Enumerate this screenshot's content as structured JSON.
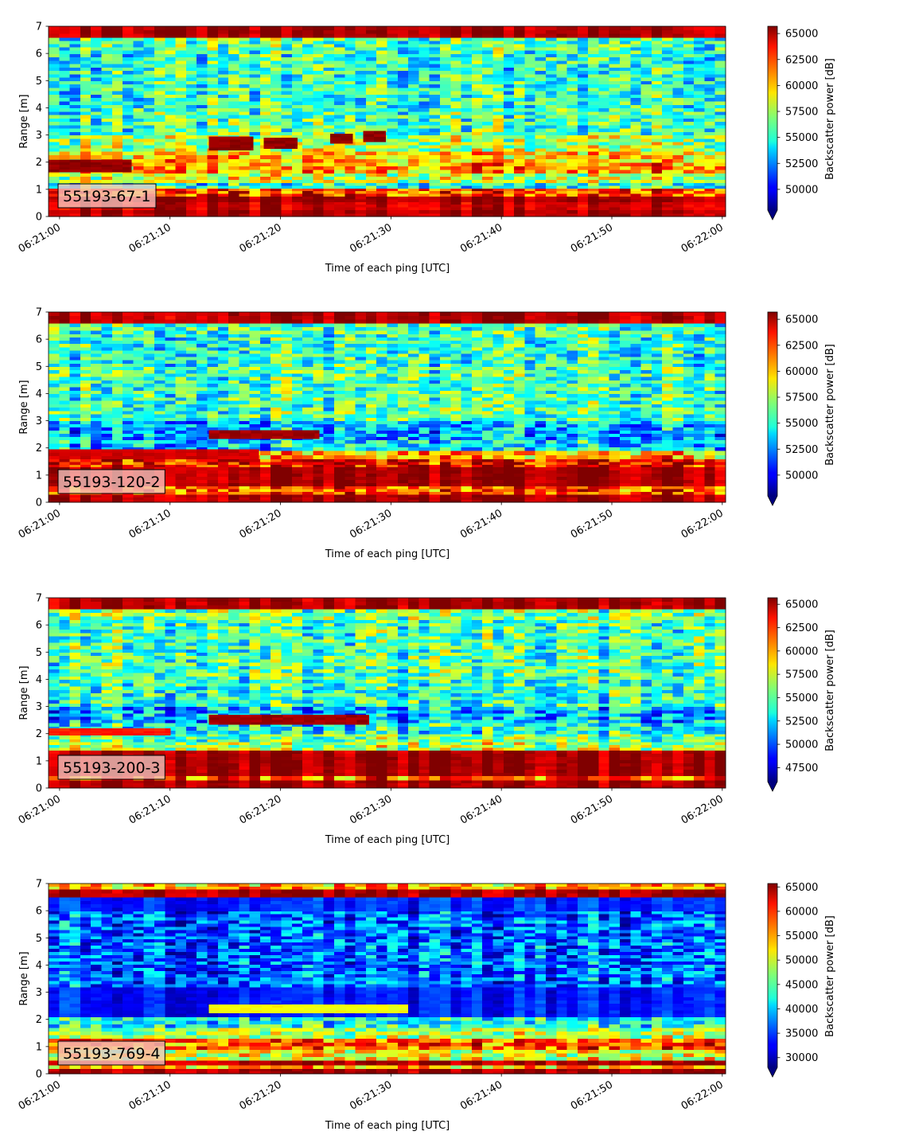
{
  "chart_data": [
    {
      "type": "heatmap",
      "panel_label": "55193-67-1",
      "xlabel": "Time of each ping [UTC]",
      "ylabel": "Range [m]",
      "x_ticks": [
        "06:21:00",
        "06:21:10",
        "06:21:20",
        "06:21:30",
        "06:21:40",
        "06:21:50",
        "06:22:00"
      ],
      "x_range_seconds": [
        -1,
        60.3
      ],
      "ylim": [
        0,
        7
      ],
      "y_ticks": [
        0,
        1,
        2,
        3,
        4,
        5,
        6,
        7
      ],
      "colormap": "jet",
      "colorbar_label": "Backscatter power [dB]",
      "colorbar_range": [
        48000,
        65700
      ],
      "colorbar_ticks": [
        50000,
        52500,
        55000,
        57500,
        60000,
        62500,
        65000
      ],
      "colorbar_extend": "min",
      "layers": [
        {
          "y0": 0.0,
          "y1": 0.25,
          "level": 0.96
        },
        {
          "y0": 0.25,
          "y1": 0.55,
          "level": 0.92
        },
        {
          "y0": 0.55,
          "y1": 0.75,
          "level": 0.97
        },
        {
          "y0": 0.75,
          "y1": 1.05,
          "level": 0.82
        },
        {
          "y0": 1.05,
          "y1": 1.25,
          "level": 0.4
        },
        {
          "y0": 1.25,
          "y1": 1.6,
          "level": 0.58
        },
        {
          "y0": 1.6,
          "y1": 2.0,
          "level": 0.72
        },
        {
          "y0": 2.0,
          "y1": 2.4,
          "level": 0.68
        },
        {
          "y0": 2.4,
          "y1": 3.0,
          "level": 0.55
        },
        {
          "y0": 3.0,
          "y1": 4.0,
          "level": 0.45
        },
        {
          "y0": 4.0,
          "y1": 5.0,
          "level": 0.42
        },
        {
          "y0": 5.0,
          "y1": 6.0,
          "level": 0.42
        },
        {
          "y0": 6.0,
          "y1": 6.6,
          "level": 0.45
        },
        {
          "y0": 6.6,
          "y1": 7.0,
          "level": 0.96
        }
      ],
      "features": [
        {
          "t0": -1,
          "t1": 6.5,
          "y0": 1.65,
          "y1": 2.1,
          "level": 0.98
        },
        {
          "t0": 13.5,
          "t1": 17.5,
          "y0": 2.45,
          "y1": 2.95,
          "level": 0.98
        },
        {
          "t0": 18.5,
          "t1": 21.5,
          "y0": 2.5,
          "y1": 2.9,
          "level": 0.98
        },
        {
          "t0": 24.5,
          "t1": 26.5,
          "y0": 2.7,
          "y1": 3.05,
          "level": 0.98
        },
        {
          "t0": 27.5,
          "t1": 29.5,
          "y0": 2.75,
          "y1": 3.15,
          "level": 0.98
        }
      ]
    },
    {
      "type": "heatmap",
      "panel_label": "55193-120-2",
      "xlabel": "Time of each ping [UTC]",
      "ylabel": "Range [m]",
      "x_ticks": [
        "06:21:00",
        "06:21:10",
        "06:21:20",
        "06:21:30",
        "06:21:40",
        "06:21:50",
        "06:22:00"
      ],
      "x_range_seconds": [
        -1,
        60.3
      ],
      "ylim": [
        0,
        7
      ],
      "y_ticks": [
        0,
        1,
        2,
        3,
        4,
        5,
        6,
        7
      ],
      "colormap": "jet",
      "colorbar_label": "Backscatter power [dB]",
      "colorbar_range": [
        48000,
        65700
      ],
      "colorbar_ticks": [
        50000,
        52500,
        55000,
        57500,
        60000,
        62500,
        65000
      ],
      "colorbar_extend": "min",
      "layers": [
        {
          "y0": 0.0,
          "y1": 0.3,
          "level": 0.96
        },
        {
          "y0": 0.3,
          "y1": 0.6,
          "level": 0.8
        },
        {
          "y0": 0.6,
          "y1": 1.3,
          "level": 0.96
        },
        {
          "y0": 1.3,
          "y1": 1.6,
          "level": 0.88
        },
        {
          "y0": 1.6,
          "y1": 1.9,
          "level": 0.7
        },
        {
          "y0": 1.9,
          "y1": 2.3,
          "level": 0.35
        },
        {
          "y0": 2.3,
          "y1": 3.0,
          "level": 0.3
        },
        {
          "y0": 3.0,
          "y1": 4.0,
          "level": 0.45
        },
        {
          "y0": 4.0,
          "y1": 5.0,
          "level": 0.45
        },
        {
          "y0": 5.0,
          "y1": 6.2,
          "level": 0.42
        },
        {
          "y0": 6.2,
          "y1": 6.6,
          "level": 0.45
        },
        {
          "y0": 6.6,
          "y1": 7.0,
          "level": 0.95
        }
      ],
      "features": [
        {
          "t0": -1,
          "t1": 18,
          "y0": 1.6,
          "y1": 1.95,
          "level": 0.92
        },
        {
          "t0": 13.5,
          "t1": 23.5,
          "y0": 2.35,
          "y1": 2.65,
          "level": 0.97
        }
      ]
    },
    {
      "type": "heatmap",
      "panel_label": "55193-200-3",
      "xlabel": "Time of each ping [UTC]",
      "ylabel": "Range [m]",
      "x_ticks": [
        "06:21:00",
        "06:21:10",
        "06:21:20",
        "06:21:30",
        "06:21:40",
        "06:21:50",
        "06:22:00"
      ],
      "x_range_seconds": [
        -1,
        60.3
      ],
      "ylim": [
        0,
        7
      ],
      "y_ticks": [
        0,
        1,
        2,
        3,
        4,
        5,
        6,
        7
      ],
      "colormap": "jet",
      "colorbar_label": "Backscatter power [dB]",
      "colorbar_range": [
        46000,
        65700
      ],
      "colorbar_ticks": [
        47500,
        50000,
        52500,
        55000,
        57500,
        60000,
        62500,
        65000
      ],
      "colorbar_extend": "min",
      "layers": [
        {
          "y0": 0.0,
          "y1": 0.3,
          "level": 0.96
        },
        {
          "y0": 0.3,
          "y1": 0.45,
          "level": 0.78
        },
        {
          "y0": 0.45,
          "y1": 1.4,
          "level": 0.97
        },
        {
          "y0": 1.4,
          "y1": 1.7,
          "level": 0.55
        },
        {
          "y0": 1.7,
          "y1": 2.0,
          "level": 0.48
        },
        {
          "y0": 2.0,
          "y1": 2.4,
          "level": 0.38
        },
        {
          "y0": 2.4,
          "y1": 3.0,
          "level": 0.3
        },
        {
          "y0": 3.0,
          "y1": 4.0,
          "level": 0.42
        },
        {
          "y0": 4.0,
          "y1": 5.0,
          "level": 0.45
        },
        {
          "y0": 5.0,
          "y1": 6.2,
          "level": 0.45
        },
        {
          "y0": 6.2,
          "y1": 6.6,
          "level": 0.5
        },
        {
          "y0": 6.6,
          "y1": 7.0,
          "level": 0.96
        }
      ],
      "features": [
        {
          "t0": 13.5,
          "t1": 28,
          "y0": 2.35,
          "y1": 2.7,
          "level": 0.97
        },
        {
          "t0": -1,
          "t1": 10,
          "y0": 1.95,
          "y1": 2.2,
          "level": 0.85
        }
      ]
    },
    {
      "type": "heatmap",
      "panel_label": "55193-769-4",
      "xlabel": "Time of each ping [UTC]",
      "ylabel": "Range [m]",
      "x_ticks": [
        "06:21:00",
        "06:21:10",
        "06:21:20",
        "06:21:30",
        "06:21:40",
        "06:21:50",
        "06:22:00"
      ],
      "x_range_seconds": [
        -1,
        60.3
      ],
      "ylim": [
        0,
        7
      ],
      "y_ticks": [
        0,
        1,
        2,
        3,
        4,
        5,
        6,
        7
      ],
      "colormap": "jet",
      "colorbar_label": "Backscatter power [dB]",
      "colorbar_range": [
        28000,
        65700
      ],
      "colorbar_ticks": [
        30000,
        35000,
        40000,
        45000,
        50000,
        55000,
        60000,
        65000
      ],
      "colorbar_extend": "min",
      "layers": [
        {
          "y0": 0.0,
          "y1": 0.2,
          "level": 0.96
        },
        {
          "y0": 0.2,
          "y1": 0.32,
          "level": 0.7
        },
        {
          "y0": 0.32,
          "y1": 0.5,
          "level": 0.95
        },
        {
          "y0": 0.5,
          "y1": 0.9,
          "level": 0.6
        },
        {
          "y0": 0.9,
          "y1": 1.3,
          "level": 0.8
        },
        {
          "y0": 1.3,
          "y1": 1.7,
          "level": 0.55
        },
        {
          "y0": 1.7,
          "y1": 2.1,
          "level": 0.38
        },
        {
          "y0": 2.1,
          "y1": 3.2,
          "level": 0.14
        },
        {
          "y0": 3.2,
          "y1": 4.5,
          "level": 0.22
        },
        {
          "y0": 4.5,
          "y1": 6.0,
          "level": 0.22
        },
        {
          "y0": 6.0,
          "y1": 6.5,
          "level": 0.16
        },
        {
          "y0": 6.5,
          "y1": 6.8,
          "level": 0.96
        },
        {
          "y0": 6.8,
          "y1": 7.0,
          "level": 0.7
        }
      ],
      "features": [
        {
          "t0": 13.5,
          "t1": 31.5,
          "y0": 2.25,
          "y1": 2.55,
          "level": 0.62
        }
      ]
    }
  ]
}
